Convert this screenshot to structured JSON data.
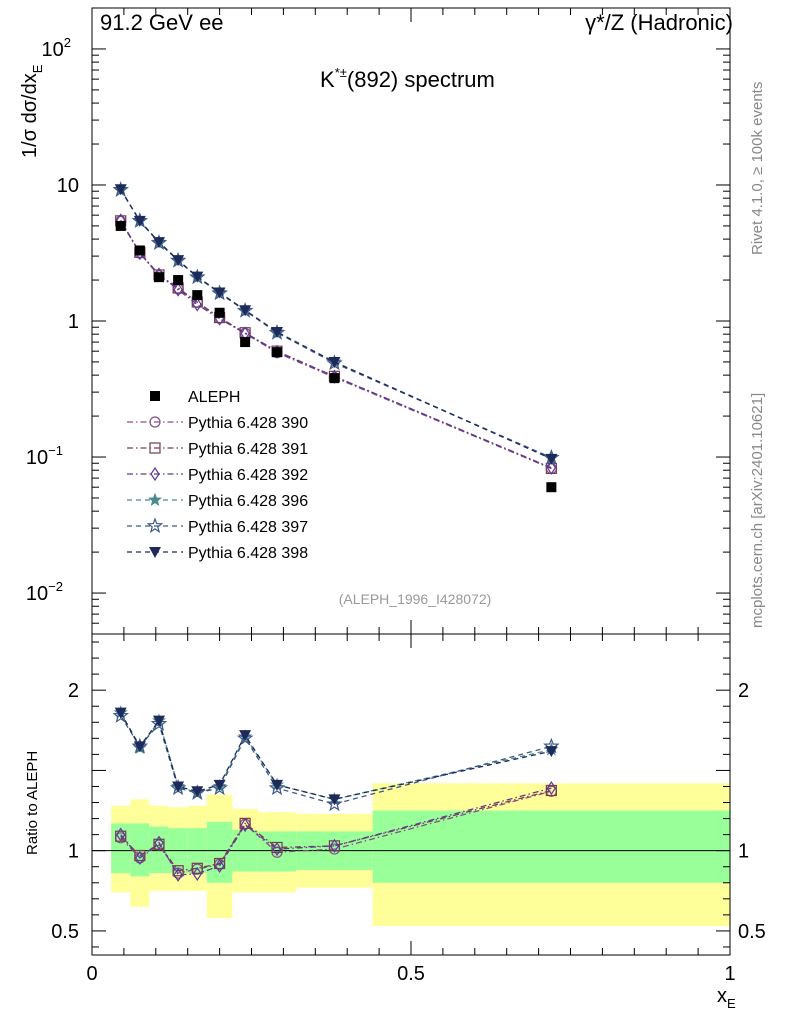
{
  "header": {
    "left": "91.2 GeV ee",
    "right": "γ*/Z (Hadronic)"
  },
  "side_labels": {
    "rivet": "Rivet 4.1.0, ≥ 100k events",
    "mcplots": "mcplots.cern.ch [arXiv:2401.10621]"
  },
  "chart_data": {
    "type": "line",
    "title_main": "K",
    "title_sup": "*±",
    "title_rest": "(892) spectrum",
    "analysis_label": "(ALEPH_1996_I428072)",
    "ylabel_top": "1/σ  dσ/dx",
    "ylabel_top_sub": "E",
    "ylabel_ratio": "Ratio to ALEPH",
    "xlabel": "x",
    "xlabel_sub": "E",
    "xlim": [
      0,
      1
    ],
    "ylim_top": [
      0.005,
      200
    ],
    "yscale_top": "log",
    "ylim_ratio": [
      0.35,
      2.35
    ],
    "x_ticks": [
      {
        "v": 0,
        "label": "0"
      },
      {
        "v": 0.5,
        "label": "0.5"
      },
      {
        "v": 1,
        "label": "1"
      }
    ],
    "y_ticks_top": [
      {
        "v": 0.01,
        "base": "10",
        "exp": "−2"
      },
      {
        "v": 0.1,
        "base": "10",
        "exp": "−1"
      },
      {
        "v": 1,
        "base": "1",
        "exp": ""
      },
      {
        "v": 10,
        "base": "10",
        "exp": ""
      },
      {
        "v": 100,
        "base": "10",
        "exp": "2"
      }
    ],
    "y_ticks_ratio": [
      {
        "v": 0.5,
        "label": "0.5"
      },
      {
        "v": 1,
        "label": "1"
      },
      {
        "v": 2,
        "label": "2"
      }
    ],
    "x": [
      0.045,
      0.075,
      0.105,
      0.135,
      0.165,
      0.2,
      0.24,
      0.29,
      0.38,
      0.72
    ],
    "bins": [
      [
        0.03,
        0.06
      ],
      [
        0.06,
        0.09
      ],
      [
        0.09,
        0.12
      ],
      [
        0.12,
        0.15
      ],
      [
        0.15,
        0.18
      ],
      [
        0.18,
        0.22
      ],
      [
        0.22,
        0.26
      ],
      [
        0.26,
        0.32
      ],
      [
        0.32,
        0.44
      ],
      [
        0.44,
        1.0
      ]
    ],
    "data": {
      "name": "ALEPH",
      "values": [
        5.0,
        3.3,
        2.1,
        2.0,
        1.55,
        1.15,
        0.7,
        0.59,
        0.38,
        0.06
      ],
      "band_stat": [
        [
          0.86,
          1.17
        ],
        [
          0.84,
          1.17
        ],
        [
          0.86,
          1.15
        ],
        [
          0.86,
          1.14
        ],
        [
          0.86,
          1.14
        ],
        [
          0.8,
          1.18
        ],
        [
          0.87,
          1.13
        ],
        [
          0.87,
          1.12
        ],
        [
          0.88,
          1.12
        ],
        [
          0.8,
          1.25
        ]
      ],
      "band_total": [
        [
          0.74,
          1.28
        ],
        [
          0.65,
          1.32
        ],
        [
          0.75,
          1.28
        ],
        [
          0.75,
          1.27
        ],
        [
          0.75,
          1.28
        ],
        [
          0.58,
          1.35
        ],
        [
          0.74,
          1.26
        ],
        [
          0.74,
          1.24
        ],
        [
          0.77,
          1.23
        ],
        [
          0.53,
          1.42
        ]
      ]
    },
    "series": [
      {
        "name": "Pythia 6.428 390",
        "color": "#8a4f88",
        "marker": "circle",
        "dash": "6,3,1.5,3",
        "values": [
          5.4,
          3.15,
          2.15,
          1.72,
          1.37,
          1.05,
          0.81,
          0.585,
          0.384,
          0.0823
        ],
        "ratio": [
          1.08,
          0.955,
          1.035,
          0.86,
          0.885,
          0.915,
          1.165,
          0.99,
          1.01,
          1.37
        ]
      },
      {
        "name": "Pythia 6.428 391",
        "color": "#7a3a50",
        "marker": "square",
        "dash": "6,3,1.5,3",
        "values": [
          5.45,
          3.2,
          2.18,
          1.75,
          1.38,
          1.06,
          0.82,
          0.6,
          0.392,
          0.0825
        ],
        "ratio": [
          1.09,
          0.97,
          1.04,
          0.875,
          0.89,
          0.92,
          1.17,
          1.02,
          1.03,
          1.375
        ]
      },
      {
        "name": "Pythia 6.428 392",
        "color": "#5c3a9a",
        "marker": "diamond",
        "dash": "6,3,1.5,3",
        "values": [
          5.5,
          3.15,
          2.2,
          1.7,
          1.32,
          1.04,
          0.81,
          0.595,
          0.39,
          0.0834
        ],
        "ratio": [
          1.1,
          0.955,
          1.05,
          0.85,
          0.855,
          0.905,
          1.16,
          1.01,
          1.03,
          1.39
        ]
      },
      {
        "name": "Pythia 6.428 396",
        "color": "#4a8a8e",
        "marker": "star",
        "dash": "5,4",
        "values": [
          9.3,
          5.4,
          3.8,
          2.8,
          2.1,
          1.62,
          1.2,
          0.83,
          0.5,
          0.098
        ],
        "ratio": [
          1.86,
          1.64,
          1.81,
          1.4,
          1.36,
          1.4,
          1.71,
          1.41,
          1.32,
          1.63
        ]
      },
      {
        "name": "Pythia 6.428 397",
        "color": "#3d5a8a",
        "marker": "star-open",
        "dash": "5,4",
        "values": [
          9.2,
          5.45,
          3.75,
          2.78,
          2.1,
          1.6,
          1.19,
          0.82,
          0.49,
          0.099
        ],
        "ratio": [
          1.84,
          1.65,
          1.79,
          1.39,
          1.36,
          1.39,
          1.7,
          1.39,
          1.29,
          1.65
        ]
      },
      {
        "name": "Pythia 6.428 398",
        "color": "#1e2a5a",
        "marker": "triangle-down",
        "dash": "5,4",
        "values": [
          9.3,
          5.45,
          3.8,
          2.8,
          2.12,
          1.62,
          1.2,
          0.83,
          0.5,
          0.097
        ],
        "ratio": [
          1.86,
          1.65,
          1.81,
          1.4,
          1.37,
          1.41,
          1.72,
          1.41,
          1.32,
          1.62
        ]
      }
    ]
  }
}
